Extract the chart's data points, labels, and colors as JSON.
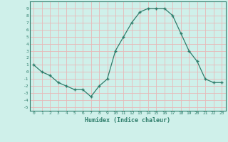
{
  "xlabel": "Humidex (Indice chaleur)",
  "ylabel": "",
  "x_values": [
    0,
    1,
    2,
    3,
    4,
    5,
    6,
    7,
    8,
    9,
    10,
    11,
    12,
    13,
    14,
    15,
    16,
    17,
    18,
    19,
    20,
    21,
    22,
    23
  ],
  "y_values": [
    1,
    0,
    -0.5,
    -1.5,
    -2,
    -2.5,
    -2.5,
    -3.5,
    -2,
    -1,
    3,
    5,
    7,
    8.5,
    9,
    9,
    9,
    8,
    5.5,
    3,
    1.5,
    -1,
    -1.5,
    -1.5
  ],
  "ylim": [
    -5.5,
    10
  ],
  "xlim": [
    -0.5,
    23.5
  ],
  "line_color": "#2e7d6b",
  "marker_color": "#2e7d6b",
  "bg_color": "#cff0ea",
  "grid_color_major": "#e8b8b8",
  "grid_color_minor": "#e8b8b8",
  "axis_color": "#2e7d6b",
  "tick_label_color": "#2e7d6b",
  "label_color": "#2e7d6b",
  "yticks": [
    -5,
    -4,
    -3,
    -2,
    -1,
    0,
    1,
    2,
    3,
    4,
    5,
    6,
    7,
    8,
    9
  ],
  "xticks": [
    0,
    1,
    2,
    3,
    4,
    5,
    6,
    7,
    8,
    9,
    10,
    11,
    12,
    13,
    14,
    15,
    16,
    17,
    18,
    19,
    20,
    21,
    22,
    23
  ]
}
